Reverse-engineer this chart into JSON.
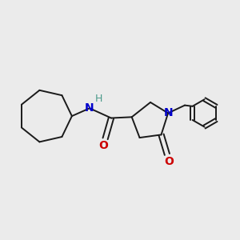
{
  "background_color": "#ebebeb",
  "bond_color": "#1a1a1a",
  "N_color": "#0000cc",
  "O_color": "#cc0000",
  "H_color": "#4a9a8a",
  "figsize": [
    3.0,
    3.0
  ],
  "dpi": 100,
  "lw": 1.4,
  "xlim": [
    0,
    12
  ],
  "ylim": [
    0,
    12
  ]
}
